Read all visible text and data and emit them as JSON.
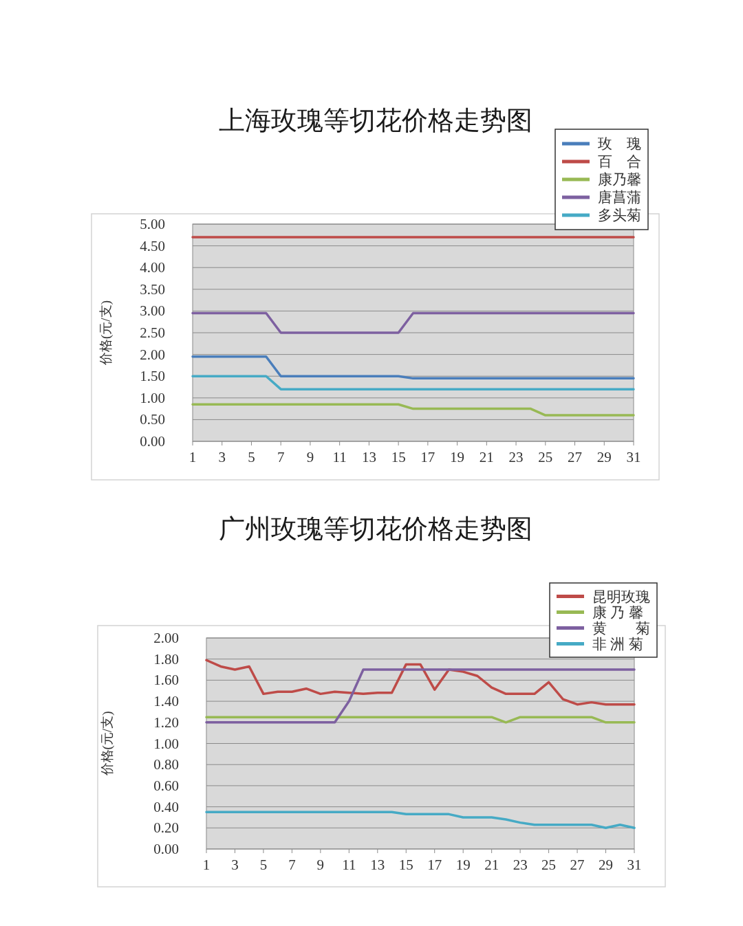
{
  "chart_data": [
    {
      "type": "line",
      "title": "上海玫瑰等切花价格走势图",
      "ylabel": "价格(元/支)",
      "x": [
        1,
        2,
        3,
        4,
        5,
        6,
        7,
        8,
        9,
        10,
        11,
        12,
        13,
        14,
        15,
        16,
        17,
        18,
        19,
        20,
        21,
        22,
        23,
        24,
        25,
        26,
        27,
        28,
        29,
        30,
        31
      ],
      "xlim": [
        1,
        31
      ],
      "xticks": [
        1,
        3,
        5,
        7,
        9,
        11,
        13,
        15,
        17,
        19,
        21,
        23,
        25,
        27,
        29,
        31
      ],
      "ylim": [
        0,
        5
      ],
      "yticks": [
        {
          "value": 0,
          "label": "0.00"
        },
        {
          "value": 0.5,
          "label": "0.50"
        },
        {
          "value": 1,
          "label": "1.00"
        },
        {
          "value": 1.5,
          "label": "1.50"
        },
        {
          "value": 2,
          "label": "2.00"
        },
        {
          "value": 2.5,
          "label": "2.50"
        },
        {
          "value": 3,
          "label": "3.00"
        },
        {
          "value": 3.5,
          "label": "3.50"
        },
        {
          "value": 4,
          "label": "4.00"
        },
        {
          "value": 4.5,
          "label": "4.50"
        },
        {
          "value": 5,
          "label": "5.00"
        }
      ],
      "grid": "y",
      "legend": "top right",
      "series": [
        {
          "name": "玫　瑰",
          "color": "#4a7ebb",
          "values": [
            1.95,
            1.95,
            1.95,
            1.95,
            1.95,
            1.95,
            1.5,
            1.5,
            1.5,
            1.5,
            1.5,
            1.5,
            1.5,
            1.5,
            1.5,
            1.45,
            1.45,
            1.45,
            1.45,
            1.45,
            1.45,
            1.45,
            1.45,
            1.45,
            1.45,
            1.45,
            1.45,
            1.45,
            1.45,
            1.45,
            1.45
          ]
        },
        {
          "name": "百　合",
          "color": "#be4b48",
          "values": [
            4.7,
            4.7,
            4.7,
            4.7,
            4.7,
            4.7,
            4.7,
            4.7,
            4.7,
            4.7,
            4.7,
            4.7,
            4.7,
            4.7,
            4.7,
            4.7,
            4.7,
            4.7,
            4.7,
            4.7,
            4.7,
            4.7,
            4.7,
            4.7,
            4.7,
            4.7,
            4.7,
            4.7,
            4.7,
            4.7,
            4.7
          ]
        },
        {
          "name": "康乃馨",
          "color": "#98b954",
          "values": [
            0.85,
            0.85,
            0.85,
            0.85,
            0.85,
            0.85,
            0.85,
            0.85,
            0.85,
            0.85,
            0.85,
            0.85,
            0.85,
            0.85,
            0.85,
            0.75,
            0.75,
            0.75,
            0.75,
            0.75,
            0.75,
            0.75,
            0.75,
            0.75,
            0.6,
            0.6,
            0.6,
            0.6,
            0.6,
            0.6,
            0.6
          ]
        },
        {
          "name": "唐菖蒲",
          "color": "#7d60a0",
          "values": [
            2.95,
            2.95,
            2.95,
            2.95,
            2.95,
            2.95,
            2.5,
            2.5,
            2.5,
            2.5,
            2.5,
            2.5,
            2.5,
            2.5,
            2.5,
            2.95,
            2.95,
            2.95,
            2.95,
            2.95,
            2.95,
            2.95,
            2.95,
            2.95,
            2.95,
            2.95,
            2.95,
            2.95,
            2.95,
            2.95,
            2.95
          ]
        },
        {
          "name": "多头菊",
          "color": "#46aac5",
          "values": [
            1.5,
            1.5,
            1.5,
            1.5,
            1.5,
            1.5,
            1.2,
            1.2,
            1.2,
            1.2,
            1.2,
            1.2,
            1.2,
            1.2,
            1.2,
            1.2,
            1.2,
            1.2,
            1.2,
            1.2,
            1.2,
            1.2,
            1.2,
            1.2,
            1.2,
            1.2,
            1.2,
            1.2,
            1.2,
            1.2,
            1.2
          ]
        }
      ]
    },
    {
      "type": "line",
      "title": "广州玫瑰等切花价格走势图",
      "ylabel": "价格(元/支)",
      "x": [
        1,
        2,
        3,
        4,
        5,
        6,
        7,
        8,
        9,
        10,
        11,
        12,
        13,
        14,
        15,
        16,
        17,
        18,
        19,
        20,
        21,
        22,
        23,
        24,
        25,
        26,
        27,
        28,
        29,
        30,
        31
      ],
      "xlim": [
        1,
        31
      ],
      "xticks": [
        1,
        3,
        5,
        7,
        9,
        11,
        13,
        15,
        17,
        19,
        21,
        23,
        25,
        27,
        29,
        31
      ],
      "ylim": [
        0,
        2
      ],
      "yticks": [
        {
          "value": 0,
          "label": "0.00"
        },
        {
          "value": 0.2,
          "label": "0.20"
        },
        {
          "value": 0.4,
          "label": "0.40"
        },
        {
          "value": 0.6,
          "label": "0.60"
        },
        {
          "value": 0.8,
          "label": "0.80"
        },
        {
          "value": 1,
          "label": "1.00"
        },
        {
          "value": 1.2,
          "label": "1.20"
        },
        {
          "value": 1.4,
          "label": "1.40"
        },
        {
          "value": 1.6,
          "label": "1.60"
        },
        {
          "value": 1.8,
          "label": "1.80"
        },
        {
          "value": 2,
          "label": "2.00"
        }
      ],
      "grid": "y",
      "legend": "top right",
      "series": [
        {
          "name": "昆明玫瑰",
          "color": "#be4b48",
          "values": [
            1.79,
            1.73,
            1.7,
            1.73,
            1.47,
            1.49,
            1.49,
            1.52,
            1.47,
            1.49,
            1.48,
            1.47,
            1.48,
            1.48,
            1.75,
            1.75,
            1.51,
            1.7,
            1.68,
            1.64,
            1.53,
            1.47,
            1.47,
            1.47,
            1.58,
            1.42,
            1.37,
            1.39,
            1.37,
            1.37,
            1.37
          ]
        },
        {
          "name": "康 乃 馨",
          "color": "#98b954",
          "values": [
            1.25,
            1.25,
            1.25,
            1.25,
            1.25,
            1.25,
            1.25,
            1.25,
            1.25,
            1.25,
            1.25,
            1.25,
            1.25,
            1.25,
            1.25,
            1.25,
            1.25,
            1.25,
            1.25,
            1.25,
            1.25,
            1.2,
            1.25,
            1.25,
            1.25,
            1.25,
            1.25,
            1.25,
            1.2,
            1.2,
            1.2
          ]
        },
        {
          "name": "黄　　菊",
          "color": "#7d60a0",
          "values": [
            1.2,
            1.2,
            1.2,
            1.2,
            1.2,
            1.2,
            1.2,
            1.2,
            1.2,
            1.2,
            1.4,
            1.7,
            1.7,
            1.7,
            1.7,
            1.7,
            1.7,
            1.7,
            1.7,
            1.7,
            1.7,
            1.7,
            1.7,
            1.7,
            1.7,
            1.7,
            1.7,
            1.7,
            1.7,
            1.7,
            1.7
          ]
        },
        {
          "name": "非 洲 菊",
          "color": "#46aac5",
          "values": [
            0.35,
            0.35,
            0.35,
            0.35,
            0.35,
            0.35,
            0.35,
            0.35,
            0.35,
            0.35,
            0.35,
            0.35,
            0.35,
            0.35,
            0.33,
            0.33,
            0.33,
            0.33,
            0.3,
            0.3,
            0.3,
            0.28,
            0.25,
            0.23,
            0.23,
            0.23,
            0.23,
            0.23,
            0.2,
            0.23,
            0.2
          ]
        }
      ]
    }
  ]
}
